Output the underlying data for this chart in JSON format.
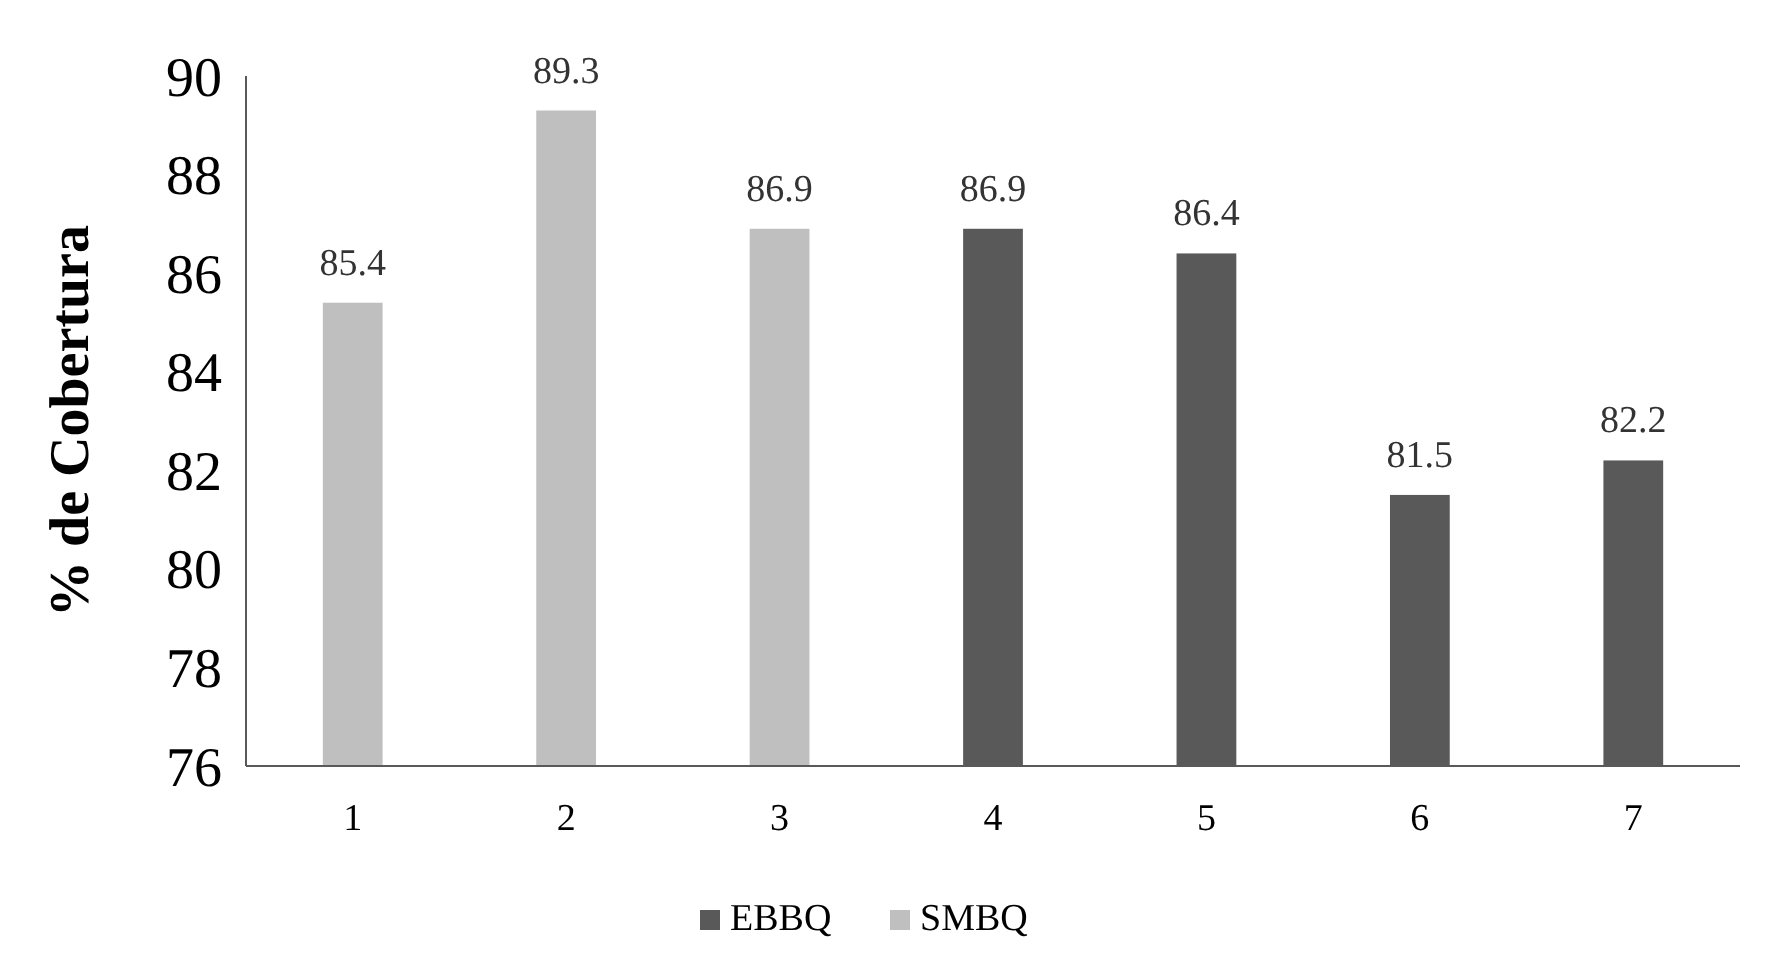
{
  "chart_data": {
    "type": "bar",
    "ylabel": "% de Cobertura",
    "categories": [
      "1",
      "2",
      "3",
      "4",
      "5",
      "6",
      "7"
    ],
    "series": [
      {
        "name": "EBBQ",
        "color": "#595959",
        "values": [
          null,
          null,
          null,
          86.9,
          86.4,
          81.5,
          82.2
        ]
      },
      {
        "name": "SMBQ",
        "color": "#bfbfbf",
        "values": [
          85.4,
          89.3,
          86.9,
          null,
          null,
          null,
          null
        ]
      }
    ],
    "ylim": [
      76,
      90
    ],
    "yticks": [
      76,
      78,
      80,
      82,
      84,
      86,
      88,
      90
    ],
    "grid": false,
    "legend": "bottom",
    "data_labels": true
  }
}
